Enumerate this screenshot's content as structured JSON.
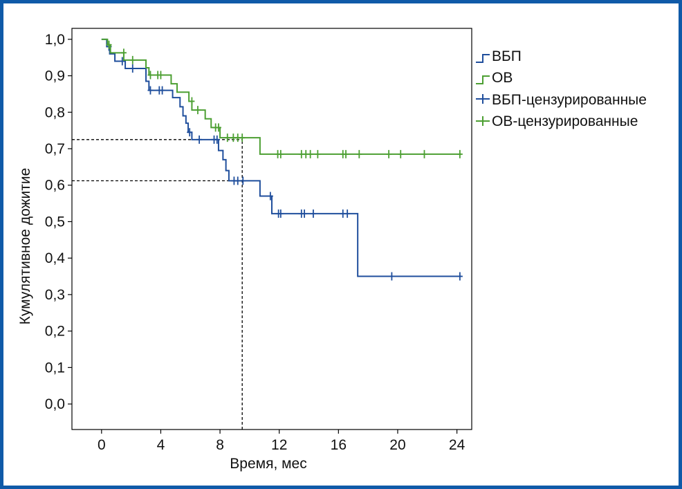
{
  "colors": {
    "frame": "#0f5aa8",
    "pfs": "#1f4e9c",
    "os": "#4c9f32",
    "guide": "#000000"
  },
  "chart_data": {
    "type": "line",
    "subtype": "kaplan-meier-step",
    "title": "",
    "xlabel": "Время, мес",
    "ylabel": "Кумулятивное дожитие",
    "xlim": [
      -2,
      25
    ],
    "ylim": [
      -0.07,
      1.03
    ],
    "x_ticks": [
      0,
      4,
      8,
      12,
      16,
      20,
      24
    ],
    "x_tick_labels": [
      "0",
      "4",
      "8",
      "12",
      "16",
      "20",
      "24"
    ],
    "y_ticks": [
      0.0,
      0.1,
      0.2,
      0.3,
      0.4,
      0.5,
      0.6,
      0.7,
      0.8,
      0.9,
      1.0
    ],
    "y_tick_labels": [
      "0,0",
      "0,1",
      "0,2",
      "0,3",
      "0,4",
      "0,5",
      "0,6",
      "0,7",
      "0,8",
      "0,9",
      "1,0"
    ],
    "legend_position": "right",
    "legend": [
      "ВБП",
      "ОВ",
      "ВБП-цензурированные",
      "ОВ-цензурированные"
    ],
    "series": [
      {
        "name": "ВБП",
        "color_key": "pfs",
        "steps": [
          [
            0.0,
            1.0
          ],
          [
            0.35,
            0.98
          ],
          [
            0.55,
            0.96
          ],
          [
            0.9,
            0.94
          ],
          [
            1.6,
            0.92
          ],
          [
            3.0,
            0.885
          ],
          [
            3.2,
            0.86
          ],
          [
            4.8,
            0.84
          ],
          [
            5.3,
            0.815
          ],
          [
            5.5,
            0.79
          ],
          [
            5.7,
            0.77
          ],
          [
            5.85,
            0.745
          ],
          [
            6.1,
            0.725
          ],
          [
            7.9,
            0.695
          ],
          [
            8.2,
            0.67
          ],
          [
            8.4,
            0.64
          ],
          [
            8.6,
            0.612
          ],
          [
            10.7,
            0.57
          ],
          [
            11.5,
            0.522
          ],
          [
            17.3,
            0.35
          ],
          [
            24.3,
            0.35
          ]
        ],
        "censored": [
          [
            0.5,
            0.98
          ],
          [
            1.4,
            0.94
          ],
          [
            2.1,
            0.92
          ],
          [
            3.3,
            0.86
          ],
          [
            3.9,
            0.86
          ],
          [
            4.1,
            0.86
          ],
          [
            5.95,
            0.745
          ],
          [
            6.6,
            0.725
          ],
          [
            7.6,
            0.725
          ],
          [
            7.8,
            0.725
          ],
          [
            8.95,
            0.612
          ],
          [
            9.2,
            0.612
          ],
          [
            9.55,
            0.612
          ],
          [
            11.4,
            0.57
          ],
          [
            11.95,
            0.522
          ],
          [
            12.1,
            0.522
          ],
          [
            13.5,
            0.522
          ],
          [
            13.7,
            0.522
          ],
          [
            14.3,
            0.522
          ],
          [
            16.3,
            0.522
          ],
          [
            16.6,
            0.522
          ],
          [
            19.6,
            0.35
          ],
          [
            24.2,
            0.35
          ]
        ]
      },
      {
        "name": "ОВ",
        "color_key": "os",
        "steps": [
          [
            0.0,
            1.0
          ],
          [
            0.4,
            0.985
          ],
          [
            0.6,
            0.963
          ],
          [
            1.5,
            0.943
          ],
          [
            3.0,
            0.922
          ],
          [
            3.2,
            0.902
          ],
          [
            4.7,
            0.878
          ],
          [
            5.1,
            0.855
          ],
          [
            5.9,
            0.83
          ],
          [
            6.1,
            0.806
          ],
          [
            7.0,
            0.782
          ],
          [
            7.4,
            0.758
          ],
          [
            8.0,
            0.73
          ],
          [
            10.7,
            0.685
          ],
          [
            24.3,
            0.685
          ]
        ],
        "censored": [
          [
            0.5,
            0.985
          ],
          [
            1.5,
            0.963
          ],
          [
            2.1,
            0.943
          ],
          [
            3.3,
            0.902
          ],
          [
            3.8,
            0.902
          ],
          [
            4.0,
            0.902
          ],
          [
            6.1,
            0.83
          ],
          [
            6.5,
            0.806
          ],
          [
            7.7,
            0.758
          ],
          [
            7.9,
            0.758
          ],
          [
            8.5,
            0.73
          ],
          [
            8.9,
            0.73
          ],
          [
            9.2,
            0.73
          ],
          [
            9.5,
            0.73
          ],
          [
            11.9,
            0.685
          ],
          [
            12.1,
            0.685
          ],
          [
            13.5,
            0.685
          ],
          [
            13.8,
            0.685
          ],
          [
            14.1,
            0.685
          ],
          [
            14.6,
            0.685
          ],
          [
            16.3,
            0.685
          ],
          [
            16.5,
            0.685
          ],
          [
            17.4,
            0.685
          ],
          [
            19.4,
            0.685
          ],
          [
            20.2,
            0.685
          ],
          [
            21.8,
            0.685
          ],
          [
            24.2,
            0.685
          ]
        ]
      }
    ],
    "guides": [
      {
        "y": 0.725,
        "x_from": -2,
        "x_to": 9.5
      },
      {
        "y": 0.612,
        "x_from": -2,
        "x_to": 9.5
      },
      {
        "x": 9.5,
        "y_from": -0.07,
        "y_to": 0.725
      }
    ]
  }
}
